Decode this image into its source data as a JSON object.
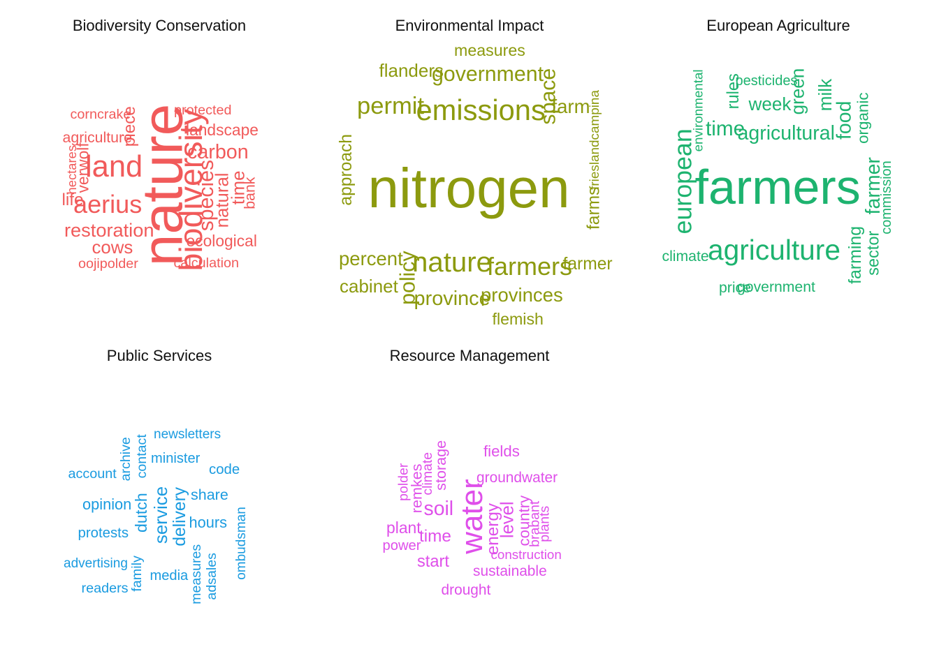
{
  "chart_data": [
    {
      "type": "wordcloud",
      "title": "Biodiversity Conservation",
      "color": "#F15A5A",
      "words": [
        {
          "text": "nature",
          "weight": 100,
          "rotated": true
        },
        {
          "text": "biodiversity",
          "weight": 52,
          "rotated": true
        },
        {
          "text": "land",
          "weight": 48,
          "rotated": false
        },
        {
          "text": "aerius",
          "weight": 38,
          "rotated": false
        },
        {
          "text": "species",
          "weight": 30,
          "rotated": true
        },
        {
          "text": "carbon",
          "weight": 28,
          "rotated": false
        },
        {
          "text": "restoration",
          "weight": 26,
          "rotated": false
        },
        {
          "text": "natural",
          "weight": 24,
          "rotated": true
        },
        {
          "text": "cows",
          "weight": 24,
          "rotated": false
        },
        {
          "text": "time",
          "weight": 24,
          "rotated": true
        },
        {
          "text": "piece",
          "weight": 22,
          "rotated": true
        },
        {
          "text": "life",
          "weight": 22,
          "rotated": false
        },
        {
          "text": "ecological",
          "weight": 20,
          "rotated": false
        },
        {
          "text": "landscape",
          "weight": 20,
          "rotated": false
        },
        {
          "text": "verwolf",
          "weight": 20,
          "rotated": true
        },
        {
          "text": "agriculture",
          "weight": 18,
          "rotated": false
        },
        {
          "text": "bank",
          "weight": 18,
          "rotated": true
        },
        {
          "text": "corncrake",
          "weight": 16,
          "rotated": false
        },
        {
          "text": "protected",
          "weight": 16,
          "rotated": false
        },
        {
          "text": "oojipolder",
          "weight": 16,
          "rotated": false
        },
        {
          "text": "calculation",
          "weight": 16,
          "rotated": false
        },
        {
          "text": "hectares",
          "weight": 14,
          "rotated": true
        }
      ]
    },
    {
      "type": "wordcloud",
      "title": "Environmental Impact",
      "color": "#8C9A0E",
      "words": [
        {
          "text": "nitrogen",
          "weight": 100,
          "rotated": false
        },
        {
          "text": "emissions",
          "weight": 46,
          "rotated": false
        },
        {
          "text": "nature",
          "weight": 44,
          "rotated": false
        },
        {
          "text": "farmers",
          "weight": 38,
          "rotated": false
        },
        {
          "text": "permit",
          "weight": 36,
          "rotated": false
        },
        {
          "text": "government",
          "weight": 30,
          "rotated": false
        },
        {
          "text": "policy",
          "weight": 30,
          "rotated": true
        },
        {
          "text": "space",
          "weight": 30,
          "rotated": true
        },
        {
          "text": "province",
          "weight": 28,
          "rotated": false
        },
        {
          "text": "farm",
          "weight": 26,
          "rotated": false
        },
        {
          "text": "percent",
          "weight": 26,
          "rotated": false
        },
        {
          "text": "provinces",
          "weight": 26,
          "rotated": false
        },
        {
          "text": "flanders",
          "weight": 24,
          "rotated": false
        },
        {
          "text": "cabinet",
          "weight": 24,
          "rotated": false
        },
        {
          "text": "approach",
          "weight": 22,
          "rotated": true
        },
        {
          "text": "farmer",
          "weight": 22,
          "rotated": false
        },
        {
          "text": "farms",
          "weight": 22,
          "rotated": true
        },
        {
          "text": "measures",
          "weight": 20,
          "rotated": false
        },
        {
          "text": "flemish",
          "weight": 20,
          "rotated": false
        },
        {
          "text": "frieslandcampina",
          "weight": 14,
          "rotated": true
        }
      ]
    },
    {
      "type": "wordcloud",
      "title": "European Agriculture",
      "color": "#1DB36F",
      "words": [
        {
          "text": "farmers",
          "weight": 100,
          "rotated": false
        },
        {
          "text": "agriculture",
          "weight": 52,
          "rotated": false
        },
        {
          "text": "european",
          "weight": 44,
          "rotated": true
        },
        {
          "text": "time",
          "weight": 34,
          "rotated": false
        },
        {
          "text": "agricultural",
          "weight": 32,
          "rotated": false
        },
        {
          "text": "food",
          "weight": 32,
          "rotated": true
        },
        {
          "text": "farmer",
          "weight": 32,
          "rotated": true
        },
        {
          "text": "week",
          "weight": 28,
          "rotated": false
        },
        {
          "text": "green",
          "weight": 28,
          "rotated": true
        },
        {
          "text": "milk",
          "weight": 28,
          "rotated": true
        },
        {
          "text": "farming",
          "weight": 26,
          "rotated": true
        },
        {
          "text": "sector",
          "weight": 24,
          "rotated": true
        },
        {
          "text": "rules",
          "weight": 24,
          "rotated": true
        },
        {
          "text": "organic",
          "weight": 22,
          "rotated": true
        },
        {
          "text": "climate",
          "weight": 20,
          "rotated": false
        },
        {
          "text": "price",
          "weight": 20,
          "rotated": false
        },
        {
          "text": "government",
          "weight": 20,
          "rotated": false
        },
        {
          "text": "commission",
          "weight": 18,
          "rotated": true
        },
        {
          "text": "pesticides",
          "weight": 18,
          "rotated": false
        },
        {
          "text": "environmental",
          "weight": 16,
          "rotated": true
        }
      ]
    },
    {
      "type": "wordcloud",
      "title": "Public Services",
      "color": "#1A9BE0",
      "words": [
        {
          "text": "service",
          "weight": 100,
          "rotated": true
        },
        {
          "text": "delivery",
          "weight": 90,
          "rotated": true
        },
        {
          "text": "dutch",
          "weight": 80,
          "rotated": true
        },
        {
          "text": "opinion",
          "weight": 70,
          "rotated": false
        },
        {
          "text": "hours",
          "weight": 70,
          "rotated": false
        },
        {
          "text": "share",
          "weight": 68,
          "rotated": false
        },
        {
          "text": "code",
          "weight": 60,
          "rotated": false
        },
        {
          "text": "protests",
          "weight": 60,
          "rotated": false
        },
        {
          "text": "minister",
          "weight": 58,
          "rotated": false
        },
        {
          "text": "media",
          "weight": 58,
          "rotated": false
        },
        {
          "text": "account",
          "weight": 56,
          "rotated": false
        },
        {
          "text": "readers",
          "weight": 56,
          "rotated": false
        },
        {
          "text": "family",
          "weight": 56,
          "rotated": true
        },
        {
          "text": "archive",
          "weight": 54,
          "rotated": true
        },
        {
          "text": "contact",
          "weight": 54,
          "rotated": true
        },
        {
          "text": "measures",
          "weight": 54,
          "rotated": true
        },
        {
          "text": "adsales",
          "weight": 54,
          "rotated": true
        },
        {
          "text": "advertising",
          "weight": 50,
          "rotated": false
        },
        {
          "text": "newsletters",
          "weight": 50,
          "rotated": false
        },
        {
          "text": "ombudsman",
          "weight": 50,
          "rotated": true
        }
      ]
    },
    {
      "type": "wordcloud",
      "title": "Resource Management",
      "color": "#DF4FEA",
      "words": [
        {
          "text": "water",
          "weight": 100,
          "rotated": true
        },
        {
          "text": "soil",
          "weight": 54,
          "rotated": false
        },
        {
          "text": "level",
          "weight": 46,
          "rotated": true
        },
        {
          "text": "energy",
          "weight": 42,
          "rotated": true
        },
        {
          "text": "time",
          "weight": 42,
          "rotated": false
        },
        {
          "text": "start",
          "weight": 40,
          "rotated": false
        },
        {
          "text": "plant",
          "weight": 38,
          "rotated": false
        },
        {
          "text": "country",
          "weight": 36,
          "rotated": true
        },
        {
          "text": "fields",
          "weight": 36,
          "rotated": false
        },
        {
          "text": "remkes",
          "weight": 34,
          "rotated": true
        },
        {
          "text": "storage",
          "weight": 34,
          "rotated": true
        },
        {
          "text": "sustainable",
          "weight": 32,
          "rotated": false
        },
        {
          "text": "groundwater",
          "weight": 32,
          "rotated": false
        },
        {
          "text": "drought",
          "weight": 32,
          "rotated": false
        },
        {
          "text": "power",
          "weight": 30,
          "rotated": false
        },
        {
          "text": "polder",
          "weight": 28,
          "rotated": true
        },
        {
          "text": "climate",
          "weight": 28,
          "rotated": true
        },
        {
          "text": "brabant",
          "weight": 28,
          "rotated": true
        },
        {
          "text": "plants",
          "weight": 28,
          "rotated": true
        },
        {
          "text": "construction",
          "weight": 26,
          "rotated": false
        }
      ]
    }
  ]
}
